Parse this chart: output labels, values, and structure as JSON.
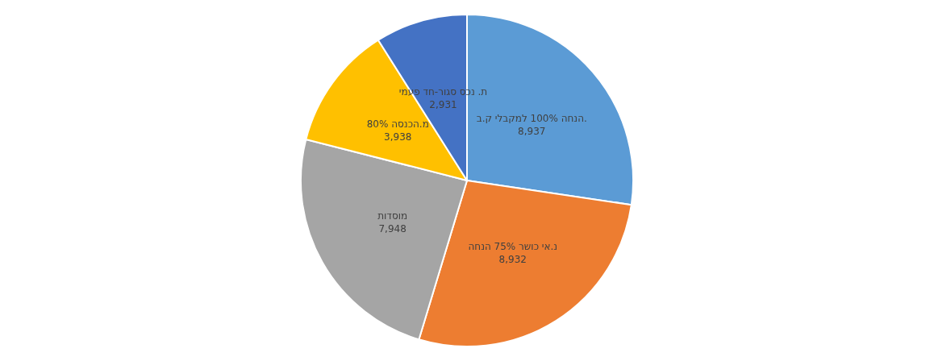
{
  "chart_data": {
    "type": "pie",
    "categories": [
      "הנחה 100% למקבלי ק.ב.",
      "נ.אי כושר 75% הנחה",
      "מוסדות",
      "80% מ.הכנסה",
      "ת. נכס סגור-חד פעמי"
    ],
    "values": [
      8937,
      8932,
      7948,
      3938,
      2931
    ],
    "value_labels": [
      "8,937",
      "8,932",
      "7,948",
      "3,938",
      "2,931"
    ],
    "colors": [
      "#5b9bd5",
      "#ed7d31",
      "#a5a5a5",
      "#ffc000",
      "#4472c4"
    ],
    "legend": false
  }
}
